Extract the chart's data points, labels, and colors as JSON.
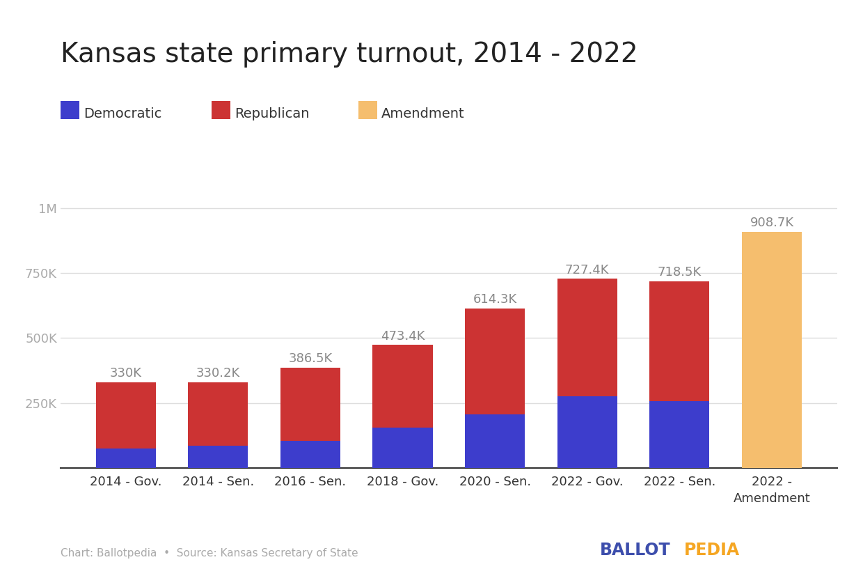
{
  "title": "Kansas state primary turnout, 2014 - 2022",
  "categories": [
    "2014 - Gov.",
    "2014 - Sen.",
    "2016 - Sen.",
    "2018 - Gov.",
    "2020 - Sen.",
    "2022 - Gov.",
    "2022 - Sen.",
    "2022 -\nAmendment"
  ],
  "democratic": [
    75000,
    85000,
    105000,
    155000,
    205000,
    275000,
    258000,
    0
  ],
  "republican": [
    255000,
    245200,
    281500,
    318400,
    409300,
    452400,
    460500,
    0
  ],
  "amendment": [
    0,
    0,
    0,
    0,
    0,
    0,
    0,
    908700
  ],
  "totals": [
    "330K",
    "330.2K",
    "386.5K",
    "473.4K",
    "614.3K",
    "727.4K",
    "718.5K",
    "908.7K"
  ],
  "total_values": [
    330000,
    330200,
    386500,
    473400,
    614300,
    727400,
    718500,
    908700
  ],
  "dem_color": "#3d3dcc",
  "rep_color": "#cc3333",
  "amend_color": "#f5be6e",
  "background_color": "#ffffff",
  "yticks": [
    0,
    250000,
    500000,
    750000,
    1000000
  ],
  "ytick_labels": [
    "",
    "250K",
    "500K",
    "750K",
    "1M"
  ],
  "ylabel_color": "#aaaaaa",
  "grid_color": "#dddddd",
  "annotation_color": "#888888",
  "title_fontsize": 28,
  "tick_fontsize": 13,
  "annotation_fontsize": 13,
  "legend_fontsize": 14,
  "footer_text": "Chart: Ballotpedia  •  Source: Kansas Secretary of State",
  "ballot_color": "#3d4eac",
  "pedia_color": "#f5a623"
}
